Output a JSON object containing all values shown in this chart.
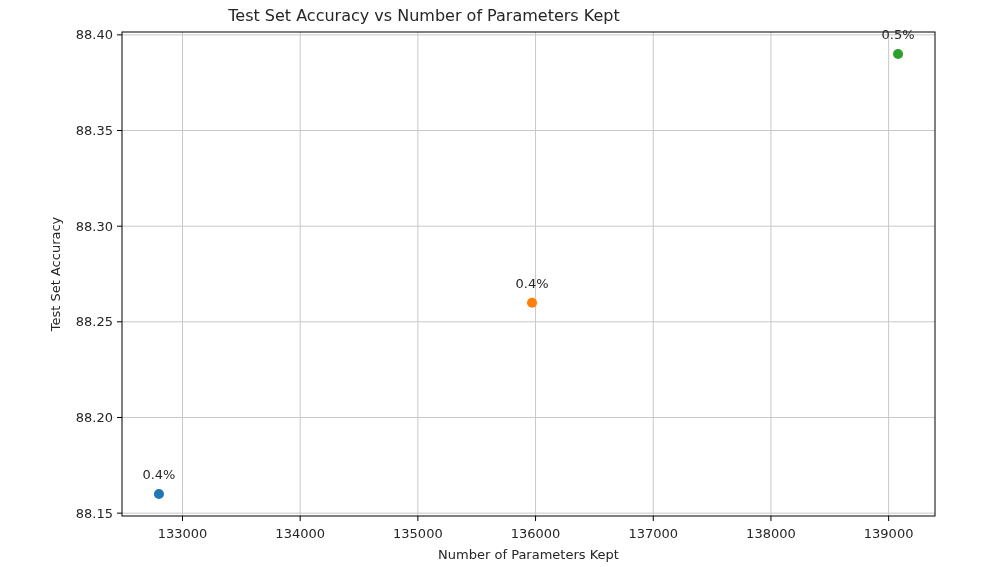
{
  "chart_data": {
    "type": "scatter",
    "title": "Test Set Accuracy vs Number of Parameters Kept",
    "xlabel": "Number of Parameters Kept",
    "ylabel": "Test Set Accuracy",
    "x": [
      132800,
      135970,
      139080
    ],
    "values": [
      88.16,
      88.26,
      88.39
    ],
    "colors": [
      "#1f77b4",
      "#ff7f0e",
      "#2ca02c"
    ],
    "xlim": [
      132486,
      139394
    ],
    "ylim": [
      88.1485,
      88.4015
    ],
    "xticks": [
      133000,
      134000,
      135000,
      136000,
      137000,
      138000,
      139000
    ],
    "yticks": [
      88.15,
      {
        "value": 88.2,
        "label": "88.20"
      },
      88.25,
      {
        "value": 88.3,
        "label": "88.30"
      },
      88.35,
      {
        "value": 88.4,
        "label": "88.40"
      }
    ],
    "grid": true,
    "marker": "circle",
    "annotations": [
      {
        "text": "0.4%",
        "x": 132800,
        "y": 88.16
      },
      {
        "text": "0.4%",
        "x": 135970,
        "y": 88.26
      },
      {
        "text": "0.5%",
        "x": 139080,
        "y": 88.39
      }
    ]
  }
}
